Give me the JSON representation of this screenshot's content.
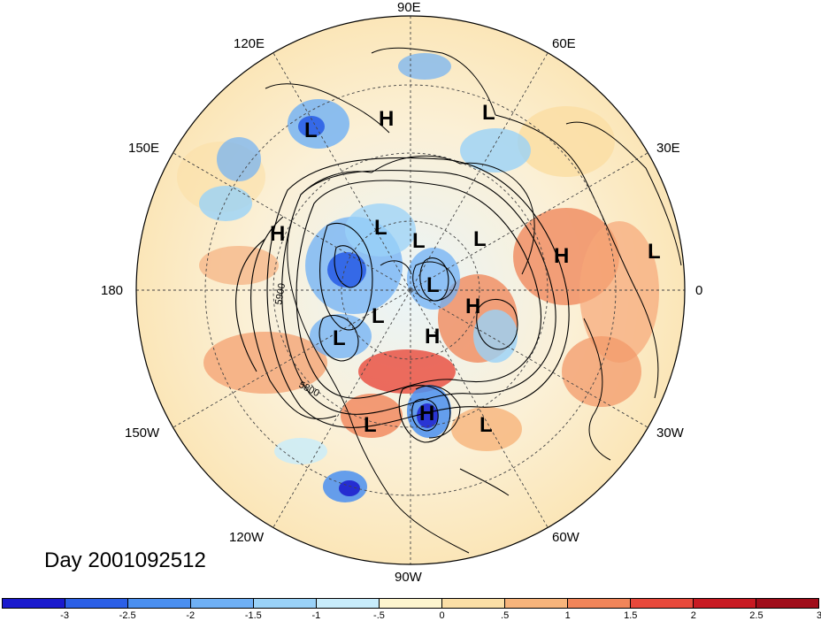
{
  "title": "Day 2001092512",
  "longitude_labels": {
    "lon_90e": "90E",
    "lon_60e": "60E",
    "lon_30e": "30E",
    "lon_0": "0",
    "lon_30w": "30W",
    "lon_60w": "60W",
    "lon_90w": "90W",
    "lon_120w": "120W",
    "lon_150w": "150W",
    "lon_180": "180",
    "lon_150e": "150E",
    "lon_120e": "120E"
  },
  "contour_labels": [
    "5900",
    "5800"
  ],
  "pressure_centers": [
    {
      "type": "H",
      "label": "H"
    },
    {
      "type": "L",
      "label": "L"
    },
    {
      "type": "L",
      "label": "L"
    },
    {
      "type": "H",
      "label": "H"
    },
    {
      "type": "L",
      "label": "L"
    },
    {
      "type": "L",
      "label": "L"
    },
    {
      "type": "L",
      "label": "L"
    },
    {
      "type": "H",
      "label": "H"
    },
    {
      "type": "L",
      "label": "L"
    },
    {
      "type": "H",
      "label": "H"
    },
    {
      "type": "L",
      "label": "L"
    },
    {
      "type": "L",
      "label": "L"
    },
    {
      "type": "L",
      "label": "L"
    },
    {
      "type": "H",
      "label": "H"
    },
    {
      "type": "L",
      "label": "L"
    },
    {
      "type": "H",
      "label": "H"
    },
    {
      "type": "L",
      "label": "L"
    }
  ],
  "colorbar": {
    "colors": [
      "#1a1acd",
      "#2b5fe6",
      "#4a8ff0",
      "#6fb0f5",
      "#9ad2f8",
      "#c8ecfb",
      "#fdf5cf",
      "#fbdfa6",
      "#f7b47b",
      "#f18559",
      "#e8493b",
      "#c81a22",
      "#a00d1a"
    ],
    "ticks": [
      "-3",
      "-2.5",
      "-2",
      "-1.5",
      "-1",
      "-.5",
      "0",
      ".5",
      "1",
      "1.5",
      "2",
      "2.5",
      "3"
    ]
  }
}
